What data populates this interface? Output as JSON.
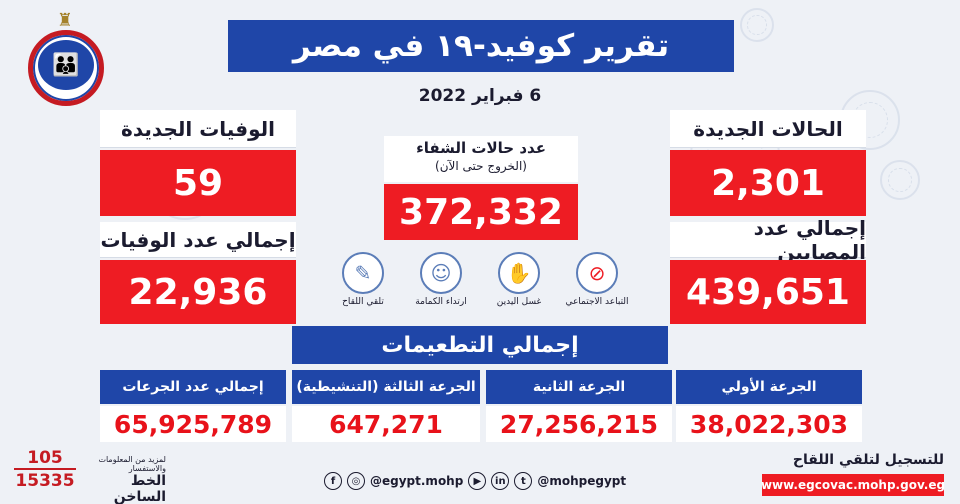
{
  "header": {
    "title": "تقرير كوفيد-١٩ في مصر",
    "date": "6 فبراير 2022"
  },
  "logo": {
    "text": "Ministry of Health & Population"
  },
  "new_cases": {
    "label": "الحالات الجديدة",
    "value": "2,301"
  },
  "total_cases": {
    "label": "إجمالي عدد المصابين",
    "value": "439,651"
  },
  "new_deaths": {
    "label": "الوفيات الجديدة",
    "value": "59"
  },
  "total_deaths": {
    "label": "إجمالي عدد الوفيات",
    "value": "22,936"
  },
  "recoveries": {
    "label": "عدد حالات الشفاء",
    "sublabel": "(الخروج حتى الآن)",
    "value": "372,332"
  },
  "precautions": [
    {
      "icon": "social-distancing-icon",
      "label": "التباعد الاجتماعي"
    },
    {
      "icon": "hand-washing-icon",
      "label": "غسل اليدين"
    },
    {
      "icon": "mask-icon",
      "label": "ارتداء الكمامة"
    },
    {
      "icon": "vaccine-icon",
      "label": "تلقي اللقاح"
    }
  ],
  "vaccinations": {
    "title": "إجمالي التطعيمات",
    "doses": [
      {
        "label": "الجرعة الأولي",
        "value": "38,022,303"
      },
      {
        "label": "الجرعة الثانية",
        "value": "27,256,215"
      },
      {
        "label": "الجرعة الثالثة (التنشيطية)",
        "value": "647,271"
      },
      {
        "label": "إجمالي عدد الجرعات",
        "value": "65,925,789"
      }
    ]
  },
  "hotline": {
    "number1": "105",
    "number2": "15335",
    "small": "لمزيد من المعلومات والاستفسار",
    "label": "الخط الساخن"
  },
  "social": {
    "handle1": "@egypt.mohp",
    "handle2": "@mohpegypt"
  },
  "registration": {
    "label": "للتسجيل لتلقي اللقاح",
    "url": "www.egcovac.mohp.gov.eg"
  },
  "colors": {
    "blue": "#1f46a8",
    "red": "#ee1c23"
  }
}
